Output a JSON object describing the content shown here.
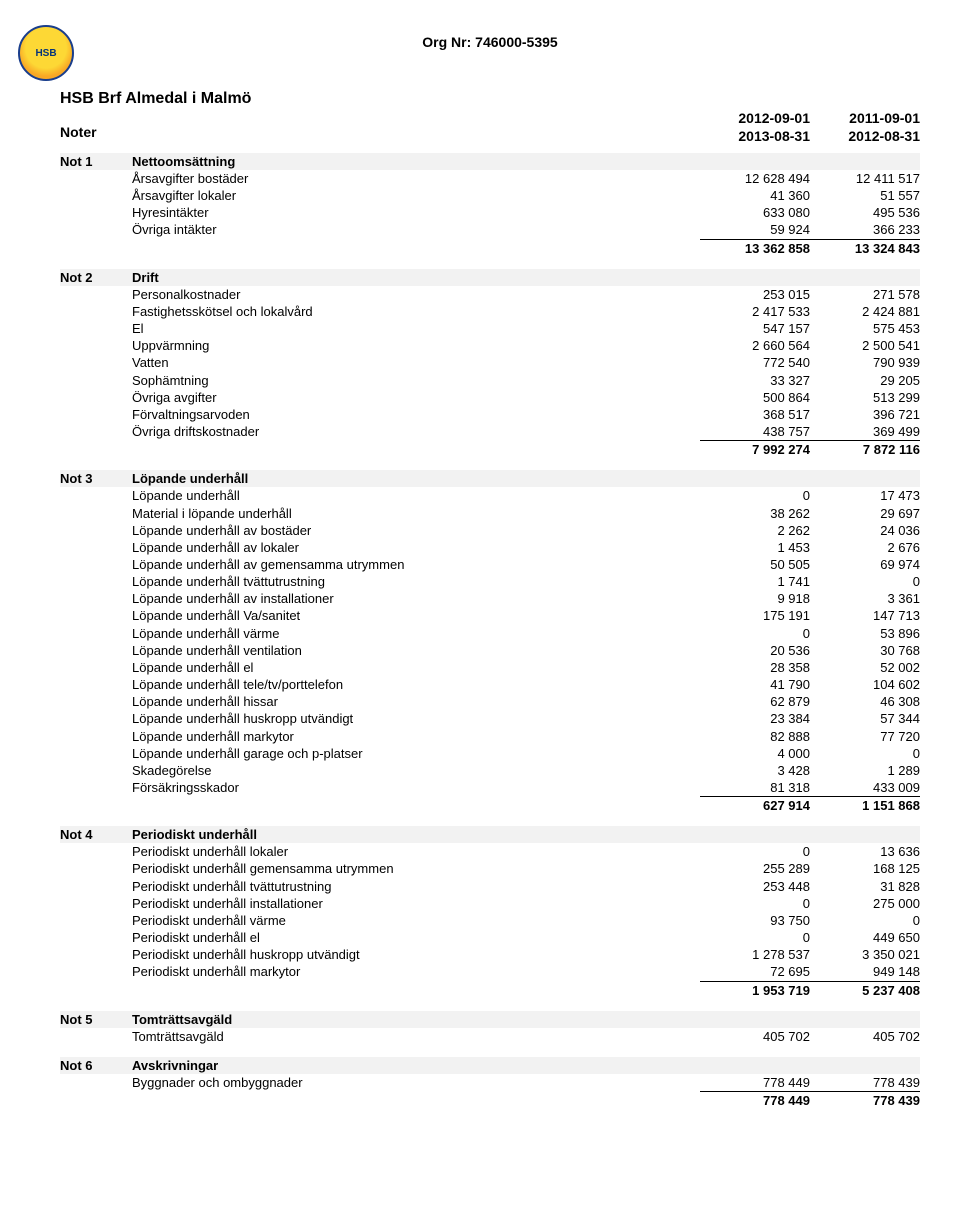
{
  "header": {
    "org_line": "Org Nr: 746000-5395",
    "company": "HSB Brf Almedal i Malmö",
    "noter": "Noter",
    "period1": [
      "2012-09-01",
      "2013-08-31"
    ],
    "period2": [
      "2011-09-01",
      "2012-08-31"
    ],
    "logo_text": "HSB"
  },
  "notes": [
    {
      "id": "Not 1",
      "title": "Nettoomsättning",
      "rows": [
        {
          "label": "Årsavgifter bostäder",
          "c1": "12 628 494",
          "c2": "12 411 517"
        },
        {
          "label": "Årsavgifter lokaler",
          "c1": "41 360",
          "c2": "51 557"
        },
        {
          "label": "Hyresintäkter",
          "c1": "633 080",
          "c2": "495 536"
        },
        {
          "label": "Övriga intäkter",
          "c1": "59 924",
          "c2": "366 233"
        }
      ],
      "total": {
        "c1": "13 362 858",
        "c2": "13 324 843"
      }
    },
    {
      "id": "Not 2",
      "title": "Drift",
      "rows": [
        {
          "label": "Personalkostnader",
          "c1": "253 015",
          "c2": "271 578"
        },
        {
          "label": "Fastighetsskötsel och lokalvård",
          "c1": "2 417 533",
          "c2": "2 424 881"
        },
        {
          "label": "El",
          "c1": "547 157",
          "c2": "575 453"
        },
        {
          "label": "Uppvärmning",
          "c1": "2 660 564",
          "c2": "2 500 541"
        },
        {
          "label": "Vatten",
          "c1": "772 540",
          "c2": "790 939"
        },
        {
          "label": "Sophämtning",
          "c1": "33 327",
          "c2": "29 205"
        },
        {
          "label": "Övriga avgifter",
          "c1": "500 864",
          "c2": "513 299"
        },
        {
          "label": "Förvaltningsarvoden",
          "c1": "368 517",
          "c2": "396 721"
        },
        {
          "label": "Övriga driftskostnader",
          "c1": "438 757",
          "c2": "369 499"
        }
      ],
      "total": {
        "c1": "7 992 274",
        "c2": "7 872 116"
      }
    },
    {
      "id": "Not 3",
      "title": "Löpande underhåll",
      "rows": [
        {
          "label": "Löpande underhåll",
          "c1": "0",
          "c2": "17 473"
        },
        {
          "label": "Material i löpande underhåll",
          "c1": "38 262",
          "c2": "29 697"
        },
        {
          "label": "Löpande underhåll av bostäder",
          "c1": "2 262",
          "c2": "24 036"
        },
        {
          "label": "Löpande underhåll av lokaler",
          "c1": "1 453",
          "c2": "2 676"
        },
        {
          "label": "Löpande underhåll av gemensamma utrymmen",
          "c1": "50 505",
          "c2": "69 974"
        },
        {
          "label": "Löpande underhåll tvättutrustning",
          "c1": "1 741",
          "c2": "0"
        },
        {
          "label": "Löpande underhåll av installationer",
          "c1": "9 918",
          "c2": "3 361"
        },
        {
          "label": "Löpande underhåll Va/sanitet",
          "c1": "175 191",
          "c2": "147 713"
        },
        {
          "label": "Löpande underhåll värme",
          "c1": "0",
          "c2": "53 896"
        },
        {
          "label": "Löpande underhåll ventilation",
          "c1": "20 536",
          "c2": "30 768"
        },
        {
          "label": "Löpande underhåll el",
          "c1": "28 358",
          "c2": "52 002"
        },
        {
          "label": "Löpande underhåll tele/tv/porttelefon",
          "c1": "41 790",
          "c2": "104 602"
        },
        {
          "label": "Löpande underhåll hissar",
          "c1": "62 879",
          "c2": "46 308"
        },
        {
          "label": "Löpande underhåll huskropp utvändigt",
          "c1": "23 384",
          "c2": "57 344"
        },
        {
          "label": "Löpande underhåll markytor",
          "c1": "82 888",
          "c2": "77 720"
        },
        {
          "label": "Löpande underhåll garage och p-platser",
          "c1": "4 000",
          "c2": "0"
        },
        {
          "label": "Skadegörelse",
          "c1": "3 428",
          "c2": "1 289"
        },
        {
          "label": "Försäkringsskador",
          "c1": "81 318",
          "c2": "433 009"
        }
      ],
      "total": {
        "c1": "627 914",
        "c2": "1 151 868"
      }
    },
    {
      "id": "Not 4",
      "title": "Periodiskt underhåll",
      "rows": [
        {
          "label": "Periodiskt underhåll lokaler",
          "c1": "0",
          "c2": "13 636"
        },
        {
          "label": "Periodiskt underhåll gemensamma utrymmen",
          "c1": "255 289",
          "c2": "168 125"
        },
        {
          "label": "Periodiskt underhåll tvättutrustning",
          "c1": "253 448",
          "c2": "31 828"
        },
        {
          "label": "Periodiskt underhåll installationer",
          "c1": "0",
          "c2": "275 000"
        },
        {
          "label": "Periodiskt underhåll värme",
          "c1": "93 750",
          "c2": "0"
        },
        {
          "label": "Periodiskt underhåll el",
          "c1": "0",
          "c2": "449 650"
        },
        {
          "label": "Periodiskt underhåll huskropp utvändigt",
          "c1": "1 278 537",
          "c2": "3 350 021"
        },
        {
          "label": "Periodiskt underhåll markytor",
          "c1": "72 695",
          "c2": "949 148"
        }
      ],
      "total": {
        "c1": "1 953 719",
        "c2": "5 237 408"
      }
    },
    {
      "id": "Not 5",
      "title": "Tomträttsavgäld",
      "rows": [
        {
          "label": "Tomträttsavgäld",
          "c1": "405 702",
          "c2": "405 702"
        }
      ]
    },
    {
      "id": "Not 6",
      "title": "Avskrivningar",
      "rows": [
        {
          "label": "Byggnader och ombyggnader",
          "c1": "778 449",
          "c2": "778 439"
        }
      ],
      "total": {
        "c1": "778 449",
        "c2": "778 439"
      }
    }
  ]
}
